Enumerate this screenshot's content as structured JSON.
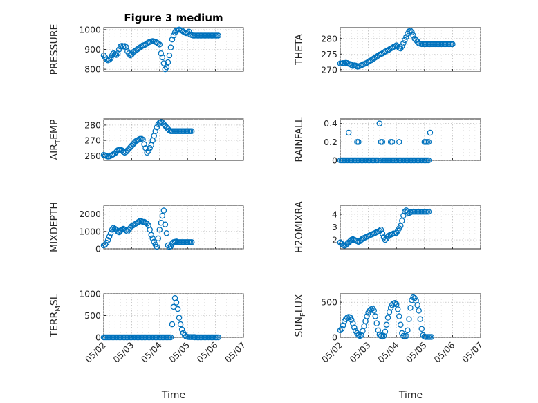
{
  "figure": {
    "title": "Figure 3 medium",
    "xlabel": "Time",
    "xticks": [
      "05/02",
      "05/03",
      "05/04",
      "05/05",
      "05/06",
      "05/07"
    ]
  },
  "colors": {
    "marker": "#0072bd",
    "axes": "#262626",
    "grid": "#b0b0b0"
  },
  "chart_data": [
    {
      "type": "scatter",
      "id": "pressure",
      "ylabel": "PRESSURE",
      "ylabel_sub": "",
      "xlim": [
        0,
        5
      ],
      "ylim": [
        790,
        1010
      ],
      "yticks": [
        800,
        900,
        1000
      ],
      "ytick_labels": [
        "800",
        "900",
        "1000"
      ],
      "x": [
        0.0,
        0.05,
        0.1,
        0.15,
        0.2,
        0.25,
        0.3,
        0.35,
        0.4,
        0.45,
        0.5,
        0.55,
        0.6,
        0.65,
        0.7,
        0.75,
        0.8,
        0.85,
        0.9,
        0.95,
        1.0,
        1.05,
        1.1,
        1.15,
        1.2,
        1.25,
        1.3,
        1.35,
        1.4,
        1.45,
        1.5,
        1.55,
        1.6,
        1.65,
        1.7,
        1.75,
        1.8,
        1.85,
        1.9,
        1.95,
        2.0,
        2.05,
        2.1,
        2.15,
        2.2,
        2.25,
        2.3,
        2.35,
        2.4,
        2.45,
        2.5,
        2.55,
        2.6,
        2.65,
        2.7,
        2.75,
        2.8,
        2.85,
        2.9,
        2.95,
        3.0,
        3.05,
        3.1,
        3.15,
        3.2,
        3.25,
        3.3,
        3.35,
        3.4,
        3.45,
        3.5,
        3.55,
        3.6,
        3.65,
        3.7,
        3.75,
        3.8,
        3.85,
        3.9,
        3.95,
        4.0,
        4.05,
        4.1
      ],
      "y": [
        870,
        860,
        850,
        845,
        848,
        855,
        870,
        880,
        875,
        872,
        880,
        900,
        915,
        918,
        915,
        917,
        912,
        890,
        880,
        870,
        875,
        885,
        890,
        895,
        900,
        905,
        910,
        915,
        920,
        922,
        925,
        930,
        935,
        938,
        940,
        942,
        940,
        938,
        935,
        930,
        925,
        880,
        860,
        830,
        800,
        810,
        835,
        870,
        910,
        950,
        970,
        985,
        995,
        998,
        1000,
        998,
        995,
        990,
        985,
        982,
        985,
        990,
        975,
        972,
        970,
        970,
        970,
        970,
        970,
        970,
        970,
        970,
        970,
        970,
        970,
        970,
        970,
        970,
        970,
        970,
        970,
        970,
        970
      ]
    },
    {
      "type": "scatter",
      "id": "theta",
      "ylabel": "THETA",
      "ylabel_sub": "",
      "xlim": [
        0,
        5
      ],
      "ylim": [
        269.5,
        283.5
      ],
      "yticks": [
        270,
        275,
        280
      ],
      "ytick_labels": [
        "270",
        "275",
        "280"
      ],
      "x": [
        0.0,
        0.05,
        0.1,
        0.15,
        0.2,
        0.25,
        0.3,
        0.35,
        0.4,
        0.45,
        0.5,
        0.55,
        0.6,
        0.65,
        0.7,
        0.75,
        0.8,
        0.85,
        0.9,
        0.95,
        1.0,
        1.05,
        1.1,
        1.15,
        1.2,
        1.25,
        1.3,
        1.35,
        1.4,
        1.45,
        1.5,
        1.55,
        1.6,
        1.65,
        1.7,
        1.75,
        1.8,
        1.85,
        1.9,
        1.95,
        2.0,
        2.05,
        2.1,
        2.15,
        2.2,
        2.25,
        2.3,
        2.35,
        2.4,
        2.45,
        2.5,
        2.55,
        2.6,
        2.65,
        2.7,
        2.75,
        2.8,
        2.85,
        2.9,
        2.95,
        3.0,
        3.05,
        3.1,
        3.15,
        3.2,
        3.25,
        3.3,
        3.35,
        3.4,
        3.45,
        3.5,
        3.55,
        3.6,
        3.65,
        3.7,
        3.75,
        3.8,
        3.85,
        3.9,
        3.95,
        4.0
      ],
      "y": [
        272.0,
        272.0,
        272.1,
        272.0,
        272.2,
        272.1,
        271.9,
        271.8,
        271.5,
        271.2,
        271.4,
        271.3,
        271.0,
        271.0,
        271.2,
        271.4,
        271.6,
        271.8,
        272.0,
        272.2,
        272.5,
        272.8,
        273.0,
        273.3,
        273.6,
        273.9,
        274.2,
        274.5,
        274.8,
        275.0,
        275.2,
        275.5,
        275.8,
        276.0,
        276.2,
        276.5,
        276.8,
        277.0,
        277.3,
        277.5,
        277.8,
        277.5,
        277.0,
        276.8,
        277.5,
        278.5,
        279.5,
        280.5,
        281.5,
        282.3,
        282.5,
        282.0,
        281.0,
        280.0,
        279.5,
        279.0,
        278.5,
        278.3,
        278.2,
        278.2,
        278.2,
        278.2,
        278.2,
        278.2,
        278.2,
        278.2,
        278.2,
        278.2,
        278.2,
        278.2,
        278.2,
        278.2,
        278.2,
        278.2,
        278.2,
        278.2,
        278.2,
        278.2,
        278.2,
        278.2,
        278.2
      ]
    },
    {
      "type": "scatter",
      "id": "air_temp",
      "ylabel": "AIR",
      "ylabel_sub": "T",
      "ylabel_suffix": "EMP",
      "xlim": [
        0,
        5
      ],
      "ylim": [
        257,
        284
      ],
      "yticks": [
        260,
        270,
        280
      ],
      "ytick_labels": [
        "260",
        "270",
        "280"
      ],
      "x": [
        0.0,
        0.05,
        0.1,
        0.15,
        0.2,
        0.25,
        0.3,
        0.35,
        0.4,
        0.45,
        0.5,
        0.55,
        0.6,
        0.65,
        0.7,
        0.75,
        0.8,
        0.85,
        0.9,
        0.95,
        1.0,
        1.05,
        1.1,
        1.15,
        1.2,
        1.25,
        1.3,
        1.35,
        1.4,
        1.45,
        1.5,
        1.55,
        1.6,
        1.65,
        1.7,
        1.75,
        1.8,
        1.85,
        1.9,
        1.95,
        2.0,
        2.05,
        2.1,
        2.15,
        2.2,
        2.25,
        2.3,
        2.35,
        2.4,
        2.45,
        2.5,
        2.55,
        2.6,
        2.65,
        2.7,
        2.75,
        2.8,
        2.85,
        2.9,
        2.95,
        3.0,
        3.05,
        3.1,
        3.15
      ],
      "y": [
        260.5,
        260.2,
        259.8,
        259.5,
        259.6,
        260.0,
        260.5,
        261.0,
        261.5,
        262.5,
        263.5,
        264.0,
        264.0,
        263.5,
        262.5,
        262.0,
        262.5,
        263.5,
        264.5,
        265.5,
        266.5,
        267.5,
        268.5,
        269.5,
        270.0,
        270.5,
        271.0,
        271.0,
        270.5,
        267.5,
        265.0,
        262.0,
        263.0,
        265.0,
        267.0,
        270.0,
        273.0,
        276.0,
        278.5,
        280.5,
        281.5,
        282.0,
        281.5,
        280.5,
        279.5,
        278.5,
        277.5,
        276.5,
        276.0,
        276.0,
        276.0,
        276.0,
        276.0,
        276.0,
        276.0,
        276.0,
        276.0,
        276.0,
        276.0,
        276.0,
        276.0,
        276.0,
        276.0,
        276.0
      ]
    },
    {
      "type": "scatter",
      "id": "rainfall",
      "ylabel": "RAINFALL",
      "ylabel_sub": "",
      "xlim": [
        0,
        5
      ],
      "ylim": [
        0,
        0.45
      ],
      "yticks": [
        0,
        0.2,
        0.4
      ],
      "ytick_labels": [
        "0",
        "0.2",
        "0.4"
      ],
      "x": [
        0.3,
        0.6,
        0.65,
        1.4,
        1.45,
        1.5,
        1.8,
        1.85,
        2.1,
        3.0,
        3.05,
        3.1,
        3.15,
        3.2
      ],
      "y": [
        0.3,
        0.2,
        0.2,
        0.4,
        0.2,
        0.2,
        0.2,
        0.2,
        0.2,
        0.2,
        0.2,
        0.2,
        0.2,
        0.3
      ],
      "baseline_ranges": [
        [
          0.0,
          0.6
        ],
        [
          0.65,
          1.35
        ],
        [
          1.45,
          3.15
        ]
      ]
    },
    {
      "type": "scatter",
      "id": "mixdepth",
      "ylabel": "MIXDEPTH",
      "ylabel_sub": "",
      "xlim": [
        0,
        5
      ],
      "ylim": [
        0,
        2500
      ],
      "yticks": [
        0,
        1000,
        2000
      ],
      "ytick_labels": [
        "0",
        "1000",
        "2000"
      ],
      "x": [
        0.0,
        0.05,
        0.1,
        0.15,
        0.2,
        0.25,
        0.3,
        0.35,
        0.4,
        0.45,
        0.5,
        0.55,
        0.6,
        0.65,
        0.7,
        0.75,
        0.8,
        0.85,
        0.9,
        0.95,
        1.0,
        1.05,
        1.1,
        1.15,
        1.2,
        1.25,
        1.3,
        1.35,
        1.4,
        1.45,
        1.5,
        1.55,
        1.6,
        1.65,
        1.7,
        1.75,
        1.8,
        1.85,
        1.9,
        1.95,
        2.0,
        2.05,
        2.1,
        2.15,
        2.2,
        2.25,
        2.3,
        2.35,
        2.4,
        2.45,
        2.5,
        2.55,
        2.6,
        2.65,
        2.7,
        2.75,
        2.8,
        2.85,
        2.9,
        2.95,
        3.0,
        3.05,
        3.1,
        3.15
      ],
      "y": [
        200,
        250,
        350,
        500,
        700,
        900,
        1100,
        1200,
        1150,
        1100,
        1000,
        950,
        1050,
        1100,
        1150,
        1100,
        1050,
        1000,
        1100,
        1200,
        1300,
        1350,
        1400,
        1450,
        1500,
        1550,
        1600,
        1580,
        1550,
        1550,
        1500,
        1450,
        1350,
        1100,
        800,
        600,
        400,
        250,
        120,
        600,
        1100,
        1500,
        1900,
        2200,
        1400,
        900,
        200,
        100,
        150,
        300,
        380,
        400,
        420,
        380,
        380,
        380,
        380,
        380,
        380,
        380,
        380,
        380,
        380,
        380
      ]
    },
    {
      "type": "scatter",
      "id": "h2omixra",
      "ylabel": "H2OMIXRA",
      "ylabel_sub": "",
      "xlim": [
        0,
        5
      ],
      "ylim": [
        1.3,
        4.7
      ],
      "yticks": [
        2,
        3,
        4
      ],
      "ytick_labels": [
        "2",
        "3",
        "4"
      ],
      "x": [
        0.0,
        0.05,
        0.1,
        0.15,
        0.2,
        0.25,
        0.3,
        0.35,
        0.4,
        0.45,
        0.5,
        0.55,
        0.6,
        0.65,
        0.7,
        0.75,
        0.8,
        0.85,
        0.9,
        0.95,
        1.0,
        1.05,
        1.1,
        1.15,
        1.2,
        1.25,
        1.3,
        1.35,
        1.4,
        1.45,
        1.5,
        1.55,
        1.6,
        1.65,
        1.7,
        1.75,
        1.8,
        1.85,
        1.9,
        1.95,
        2.0,
        2.05,
        2.1,
        2.15,
        2.2,
        2.25,
        2.3,
        2.35,
        2.4,
        2.45,
        2.5,
        2.55,
        2.6,
        2.65,
        2.7,
        2.75,
        2.8,
        2.85,
        2.9,
        2.95,
        3.0,
        3.05,
        3.1,
        3.15
      ],
      "y": [
        1.8,
        1.7,
        1.6,
        1.55,
        1.6,
        1.7,
        1.8,
        1.9,
        2.0,
        2.05,
        2.0,
        1.95,
        1.9,
        1.85,
        1.9,
        2.0,
        2.1,
        2.15,
        2.2,
        2.25,
        2.3,
        2.35,
        2.4,
        2.45,
        2.5,
        2.55,
        2.6,
        2.65,
        2.7,
        2.8,
        2.5,
        2.2,
        2.0,
        2.1,
        2.25,
        2.35,
        2.4,
        2.45,
        2.5,
        2.5,
        2.55,
        2.7,
        2.9,
        3.1,
        3.5,
        3.9,
        4.2,
        4.3,
        4.2,
        4.1,
        4.15,
        4.2,
        4.2,
        4.2,
        4.2,
        4.2,
        4.2,
        4.2,
        4.2,
        4.2,
        4.2,
        4.2,
        4.2,
        4.2
      ]
    },
    {
      "type": "scatter",
      "id": "terr_msl",
      "ylabel": "TERR",
      "ylabel_sub": "M",
      "ylabel_suffix": "SL",
      "xlim": [
        0,
        5
      ],
      "ylim": [
        0,
        1000
      ],
      "yticks": [
        0,
        500,
        1000
      ],
      "ytick_labels": [
        "0",
        "500",
        "1000"
      ],
      "x": [
        2.45,
        2.5,
        2.55,
        2.6,
        2.65,
        2.7,
        2.75,
        2.8,
        2.85,
        2.9,
        2.95,
        3.0,
        3.05,
        3.1,
        3.15,
        3.2,
        3.25
      ],
      "y": [
        300,
        700,
        900,
        800,
        650,
        450,
        300,
        180,
        100,
        50,
        20,
        10,
        5,
        5,
        5,
        5,
        5
      ],
      "baseline_ranges": [
        [
          0.0,
          2.4
        ],
        [
          3.25,
          4.1
        ]
      ]
    },
    {
      "type": "scatter",
      "id": "sun_flux",
      "ylabel": "SUN",
      "ylabel_sub": "F",
      "ylabel_suffix": "LUX",
      "xlim": [
        0,
        5
      ],
      "ylim": [
        0,
        620
      ],
      "yticks": [
        0,
        500
      ],
      "ytick_labels": [
        "0",
        "500"
      ],
      "x": [
        0.0,
        0.05,
        0.1,
        0.15,
        0.2,
        0.25,
        0.3,
        0.35,
        0.4,
        0.45,
        0.5,
        0.55,
        0.6,
        0.65,
        0.7,
        0.75,
        0.8,
        0.85,
        0.9,
        0.95,
        1.0,
        1.05,
        1.1,
        1.15,
        1.2,
        1.25,
        1.3,
        1.35,
        1.4,
        1.45,
        1.5,
        1.55,
        1.6,
        1.65,
        1.7,
        1.75,
        1.8,
        1.85,
        1.9,
        1.95,
        2.0,
        2.05,
        2.1,
        2.15,
        2.2,
        2.25,
        2.3,
        2.35,
        2.4,
        2.45,
        2.5,
        2.55,
        2.6,
        2.65,
        2.7,
        2.75,
        2.8,
        2.85,
        2.9,
        2.95,
        3.0,
        3.05,
        3.1,
        3.15,
        3.2,
        3.25
      ],
      "y": [
        100,
        120,
        170,
        230,
        260,
        280,
        290,
        285,
        250,
        200,
        140,
        90,
        60,
        30,
        20,
        30,
        90,
        160,
        230,
        300,
        350,
        380,
        400,
        410,
        380,
        300,
        200,
        100,
        40,
        20,
        10,
        20,
        80,
        180,
        280,
        360,
        420,
        460,
        480,
        490,
        470,
        400,
        300,
        180,
        60,
        20,
        10,
        20,
        100,
        260,
        420,
        530,
        570,
        560,
        520,
        460,
        380,
        260,
        120,
        30,
        10,
        5,
        5,
        5,
        5,
        5
      ]
    }
  ]
}
